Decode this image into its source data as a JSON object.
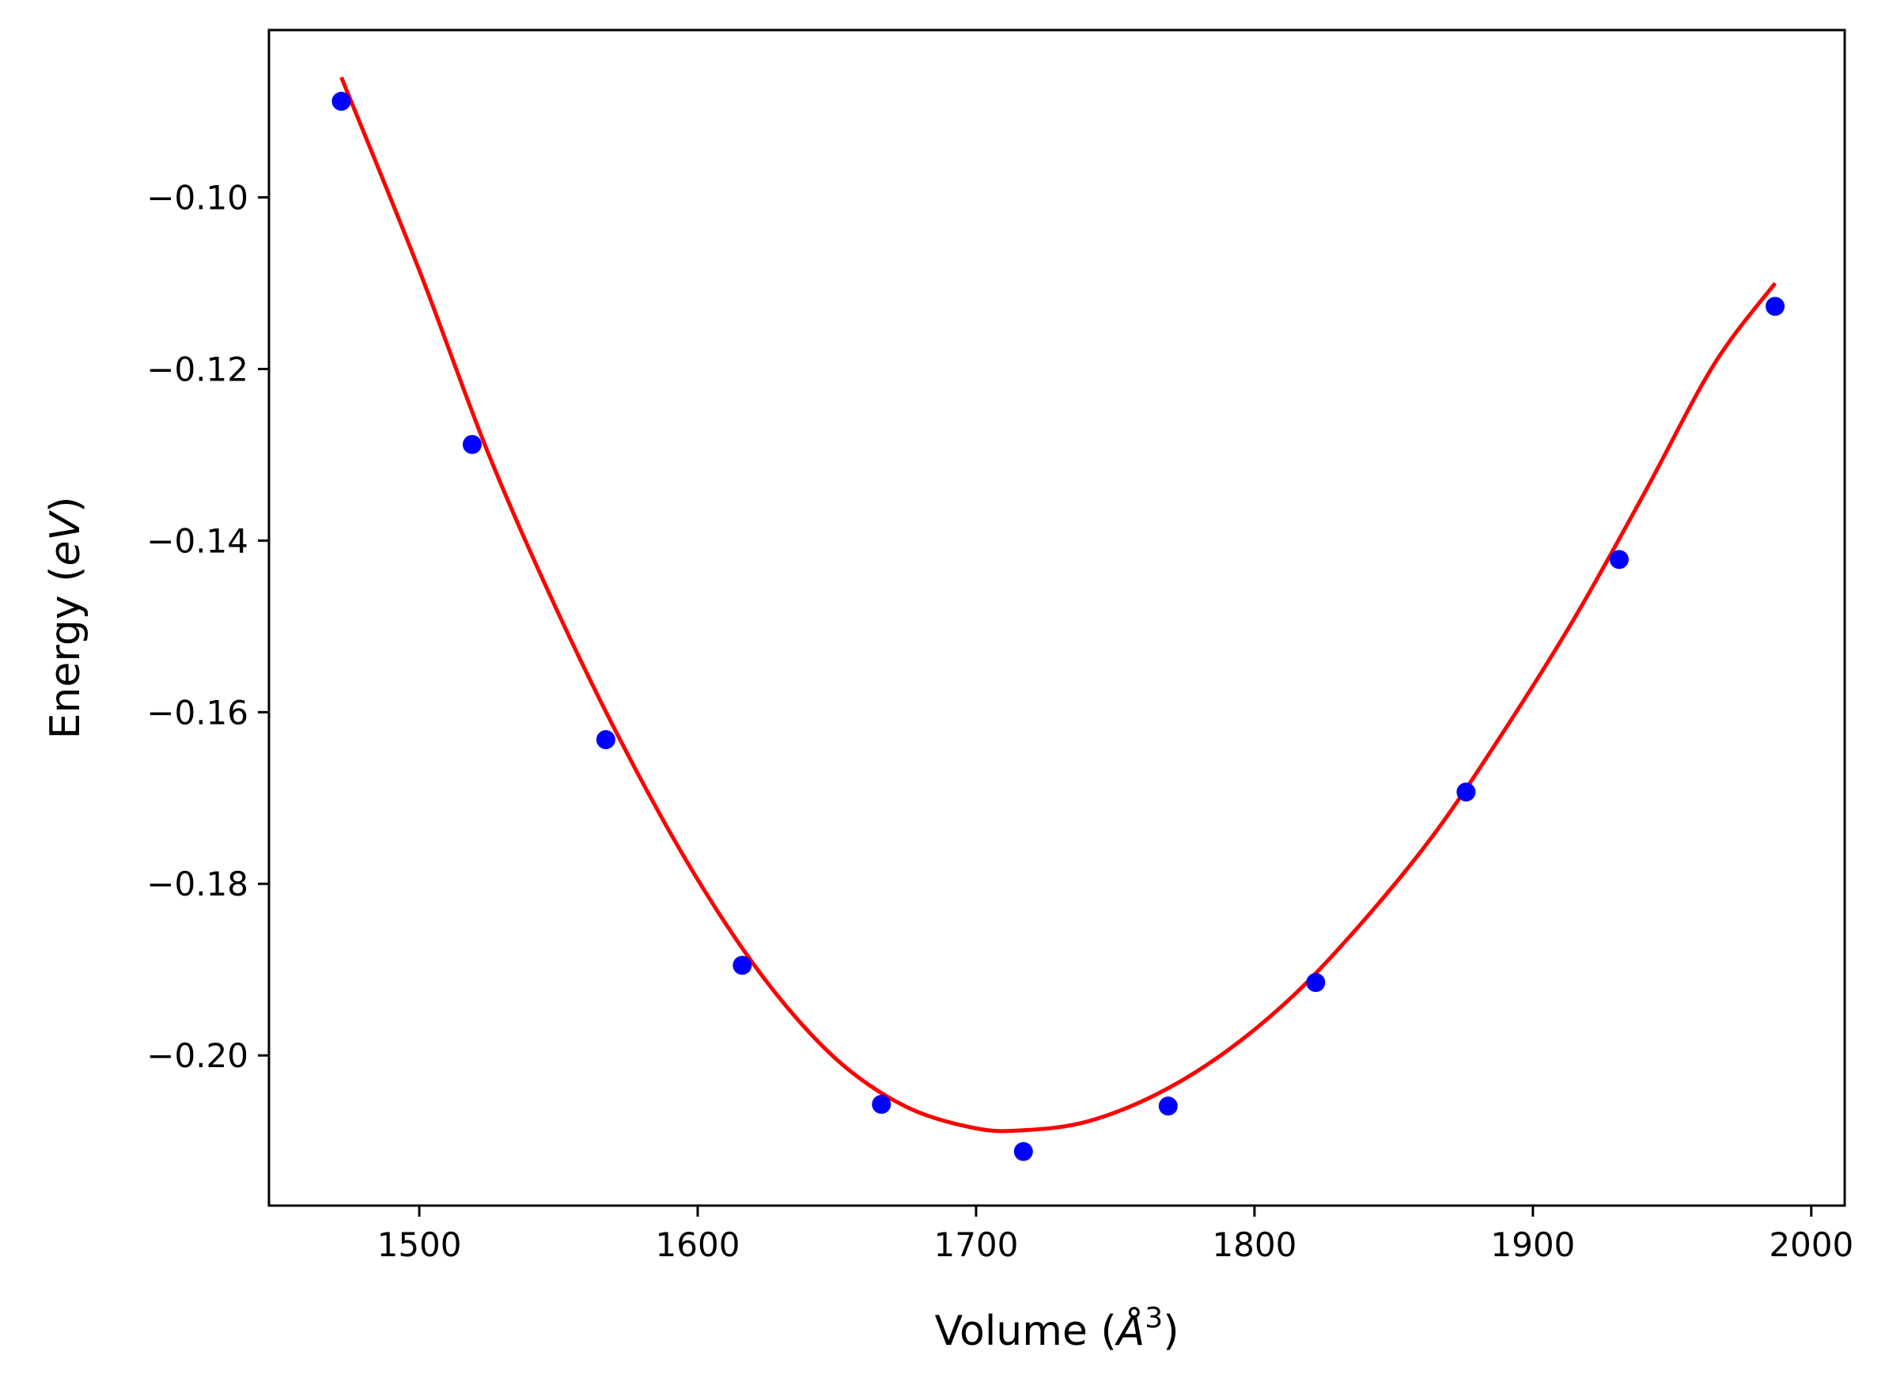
{
  "chart_data": {
    "type": "scatter",
    "xlabel": "Volume (",
    "xlabel_symbol": "Å",
    "xlabel_exp": "3",
    "xlabel_close": ")",
    "ylabel": "Energy (",
    "ylabel_unit": "eV",
    "ylabel_close": ")",
    "xlim": [
      1446,
      2012
    ],
    "ylim": [
      -0.2175,
      -0.0805
    ],
    "xticks": [
      1500,
      1600,
      1700,
      1800,
      1900,
      2000
    ],
    "xtick_labels": [
      "1500",
      "1600",
      "1700",
      "1800",
      "1900",
      "2000"
    ],
    "yticks": [
      -0.1,
      -0.12,
      -0.14,
      -0.16,
      -0.18,
      -0.2
    ],
    "ytick_labels": [
      "−0.10",
      "−0.12",
      "−0.14",
      "−0.16",
      "−0.18",
      "−0.20"
    ],
    "grid": false,
    "series": [
      {
        "kind": "points",
        "color": "#0000ff",
        "x": [
          1472,
          1519,
          1567,
          1616,
          1666,
          1717,
          1769,
          1822,
          1876,
          1931,
          1987
        ],
        "y": [
          -0.0888,
          -0.1288,
          -0.1632,
          -0.1895,
          -0.2057,
          -0.2112,
          -0.2059,
          -0.1915,
          -0.1693,
          -0.1422,
          -0.1127
        ]
      },
      {
        "kind": "fit-curve",
        "color": "#ff0000",
        "x": [
          1472,
          1500,
          1525,
          1550,
          1575,
          1600,
          1625,
          1650,
          1675,
          1700,
          1718,
          1740,
          1765,
          1790,
          1815,
          1840,
          1865,
          1890,
          1915,
          1940,
          1965,
          1987
        ],
        "y": [
          -0.086,
          -0.1085,
          -0.13,
          -0.1485,
          -0.165,
          -0.1795,
          -0.1915,
          -0.2005,
          -0.206,
          -0.2085,
          -0.2087,
          -0.2077,
          -0.2045,
          -0.1995,
          -0.1927,
          -0.184,
          -0.174,
          -0.162,
          -0.149,
          -0.1345,
          -0.1195,
          -0.11
        ]
      }
    ]
  }
}
